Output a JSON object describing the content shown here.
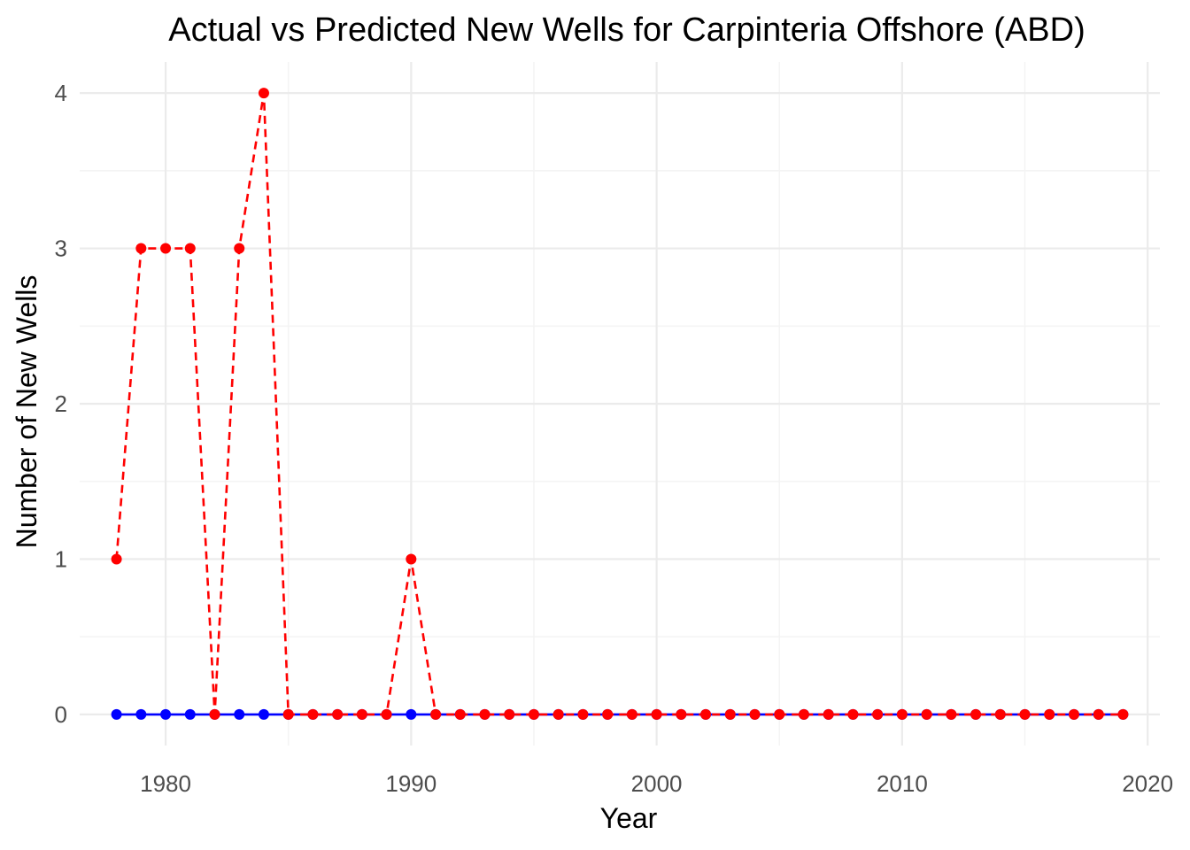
{
  "chart_data": {
    "type": "line",
    "title": "Actual vs Predicted New Wells for Carpinteria Offshore (ABD)",
    "xlabel": "Year",
    "ylabel": "Number of New Wells",
    "xlim": [
      1976.5,
      2020.5
    ],
    "ylim": [
      -0.2,
      4.2
    ],
    "x_ticks": [
      1980,
      1990,
      2000,
      2010,
      2020
    ],
    "y_ticks": [
      0,
      1,
      2,
      3,
      4
    ],
    "grid": true,
    "x": [
      1978,
      1979,
      1980,
      1981,
      1982,
      1983,
      1984,
      1985,
      1986,
      1987,
      1988,
      1989,
      1990,
      1991,
      1992,
      1993,
      1994,
      1995,
      1996,
      1997,
      1998,
      1999,
      2000,
      2001,
      2002,
      2003,
      2004,
      2005,
      2006,
      2007,
      2008,
      2009,
      2010,
      2011,
      2012,
      2013,
      2014,
      2015,
      2016,
      2017,
      2018,
      2019
    ],
    "series": [
      {
        "color": "#0000ff",
        "line_style": "solid",
        "values": [
          0,
          0,
          0,
          0,
          0,
          0,
          0,
          0,
          0,
          0,
          0,
          0,
          0,
          0,
          0,
          0,
          0,
          0,
          0,
          0,
          0,
          0,
          0,
          0,
          0,
          0,
          0,
          0,
          0,
          0,
          0,
          0,
          0,
          0,
          0,
          0,
          0,
          0,
          0,
          0,
          0,
          0
        ]
      },
      {
        "color": "#ff0000",
        "line_style": "dashed",
        "values": [
          1,
          3,
          3,
          3,
          0,
          3,
          4,
          0,
          0,
          0,
          0,
          0,
          1,
          0,
          0,
          0,
          0,
          0,
          0,
          0,
          0,
          0,
          0,
          0,
          0,
          0,
          0,
          0,
          0,
          0,
          0,
          0,
          0,
          0,
          0,
          0,
          0,
          0,
          0,
          0,
          0,
          0
        ]
      }
    ]
  }
}
